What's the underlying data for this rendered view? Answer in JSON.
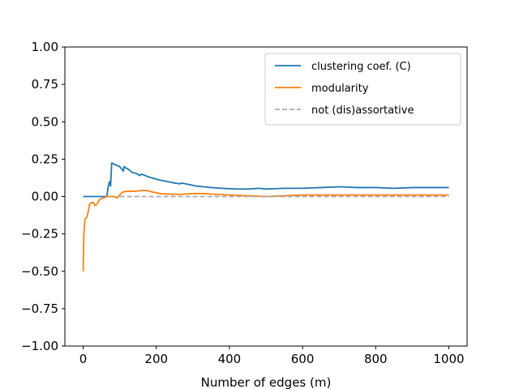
{
  "chart_data": {
    "type": "line",
    "title": "",
    "xlabel": "Number of edges (m)",
    "ylabel": "",
    "xlim": [
      -50,
      1050
    ],
    "ylim": [
      -1.0,
      1.0
    ],
    "xticks": [
      0,
      200,
      400,
      600,
      800,
      1000
    ],
    "yticks": [
      -1.0,
      -0.75,
      -0.5,
      -0.25,
      0.0,
      0.25,
      0.5,
      0.75,
      1.0
    ],
    "xtick_labels": [
      "0",
      "200",
      "400",
      "600",
      "800",
      "1000"
    ],
    "ytick_labels": [
      "−1.00",
      "−0.75",
      "−0.50",
      "−0.25",
      "0.00",
      "0.25",
      "0.50",
      "0.75",
      "1.00"
    ],
    "grid": false,
    "legend_position": "top-right",
    "series": [
      {
        "name": "clustering coef. (C)",
        "color": "#1f77b4",
        "style": "solid",
        "points": [
          [
            0,
            0
          ],
          [
            50,
            0
          ],
          [
            65,
            0
          ],
          [
            68,
            0.06
          ],
          [
            72,
            0.1
          ],
          [
            75,
            0.07
          ],
          [
            78,
            0.225
          ],
          [
            82,
            0.22
          ],
          [
            90,
            0.21
          ],
          [
            100,
            0.2
          ],
          [
            110,
            0.17
          ],
          [
            112,
            0.2
          ],
          [
            118,
            0.19
          ],
          [
            125,
            0.18
          ],
          [
            135,
            0.16
          ],
          [
            145,
            0.155
          ],
          [
            155,
            0.14
          ],
          [
            160,
            0.15
          ],
          [
            170,
            0.14
          ],
          [
            180,
            0.13
          ],
          [
            195,
            0.12
          ],
          [
            210,
            0.11
          ],
          [
            230,
            0.1
          ],
          [
            250,
            0.09
          ],
          [
            265,
            0.085
          ],
          [
            270,
            0.09
          ],
          [
            290,
            0.08
          ],
          [
            310,
            0.07
          ],
          [
            330,
            0.065
          ],
          [
            350,
            0.06
          ],
          [
            380,
            0.055
          ],
          [
            420,
            0.05
          ],
          [
            450,
            0.05
          ],
          [
            480,
            0.055
          ],
          [
            500,
            0.05
          ],
          [
            550,
            0.055
          ],
          [
            600,
            0.055
          ],
          [
            650,
            0.06
          ],
          [
            700,
            0.065
          ],
          [
            750,
            0.06
          ],
          [
            800,
            0.06
          ],
          [
            850,
            0.055
          ],
          [
            900,
            0.06
          ],
          [
            950,
            0.06
          ],
          [
            1000,
            0.06
          ]
        ]
      },
      {
        "name": "modularity",
        "color": "#ff7f0e",
        "style": "solid",
        "points": [
          [
            0,
            -0.5
          ],
          [
            2,
            -0.25
          ],
          [
            5,
            -0.15
          ],
          [
            10,
            -0.14
          ],
          [
            14,
            -0.1
          ],
          [
            18,
            -0.05
          ],
          [
            22,
            -0.04
          ],
          [
            28,
            -0.04
          ],
          [
            32,
            -0.06
          ],
          [
            38,
            -0.05
          ],
          [
            45,
            -0.02
          ],
          [
            55,
            -0.01
          ],
          [
            65,
            0
          ],
          [
            75,
            0
          ],
          [
            85,
            0
          ],
          [
            92,
            -0.01
          ],
          [
            100,
            0.01
          ],
          [
            108,
            0.03
          ],
          [
            120,
            0.035
          ],
          [
            140,
            0.035
          ],
          [
            160,
            0.04
          ],
          [
            175,
            0.04
          ],
          [
            190,
            0.03
          ],
          [
            210,
            0.02
          ],
          [
            240,
            0.015
          ],
          [
            270,
            0.015
          ],
          [
            300,
            0.02
          ],
          [
            330,
            0.02
          ],
          [
            360,
            0.015
          ],
          [
            400,
            0.01
          ],
          [
            450,
            0.005
          ],
          [
            500,
            0.0
          ],
          [
            550,
            0.005
          ],
          [
            600,
            0.01
          ],
          [
            650,
            0.01
          ],
          [
            700,
            0.01
          ],
          [
            750,
            0.01
          ],
          [
            800,
            0.01
          ],
          [
            850,
            0.01
          ],
          [
            900,
            0.01
          ],
          [
            950,
            0.01
          ],
          [
            1000,
            0.01
          ]
        ]
      },
      {
        "name": "not (dis)assortative",
        "color": "#aaaaaa",
        "style": "dashed",
        "points": [
          [
            100,
            0
          ],
          [
            1000,
            0
          ]
        ]
      }
    ]
  }
}
